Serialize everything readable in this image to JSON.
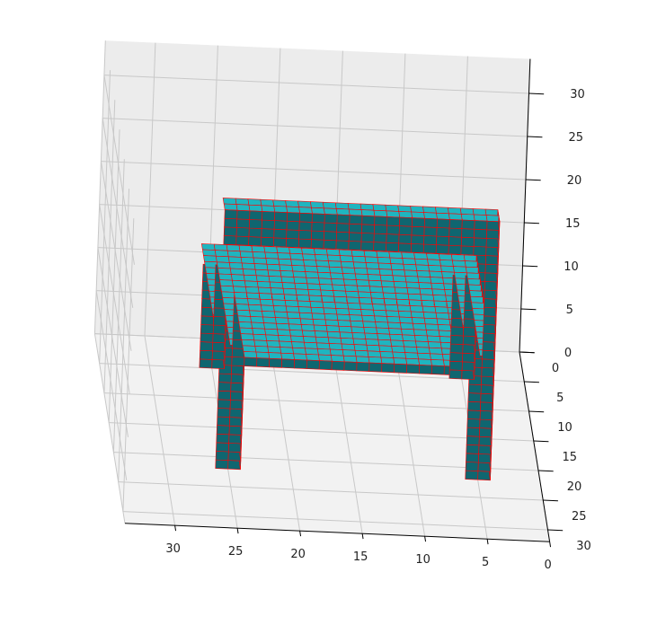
{
  "chart_data": {
    "type": "voxel",
    "title": "",
    "xlabel": "",
    "ylabel": "",
    "zlabel": "",
    "xlim": [
      0,
      32
    ],
    "ylim": [
      0,
      32
    ],
    "zlim": [
      0,
      32
    ],
    "grid": true,
    "xticks": [
      "30",
      "25",
      "20",
      "15",
      "10",
      "5",
      "0"
    ],
    "yticks": [
      "0",
      "5",
      "10",
      "15",
      "20",
      "25",
      "30"
    ],
    "zticks": [
      "0",
      "5",
      "10",
      "15",
      "20",
      "25",
      "30"
    ],
    "voxel_face_color": "#1fb5c0",
    "voxel_edge_color": "#ff0000",
    "voxel_shade_color": "#0f6670",
    "description_of_shape": "chair",
    "voxels": {
      "seat": {
        "x": [
          4,
          26
        ],
        "y": [
          3,
          22
        ],
        "z": [
          12,
          13
        ]
      },
      "front_left_leg": {
        "x": [
          4,
          6
        ],
        "y": [
          3,
          5
        ],
        "z": [
          0,
          12
        ]
      },
      "front_right_leg": {
        "x": [
          24,
          26
        ],
        "y": [
          3,
          5
        ],
        "z": [
          0,
          12
        ]
      },
      "back_left_leg": {
        "x": [
          4,
          6
        ],
        "y": [
          20,
          22
        ],
        "z": [
          0,
          12
        ]
      },
      "back_right_leg": {
        "x": [
          24,
          26
        ],
        "y": [
          20,
          22
        ],
        "z": [
          0,
          12
        ]
      },
      "back_left_post": {
        "x": [
          4,
          6
        ],
        "y": [
          20,
          22
        ],
        "z": [
          13,
          30
        ]
      },
      "back_right_post": {
        "x": [
          24,
          26
        ],
        "y": [
          20,
          22
        ],
        "z": [
          13,
          30
        ]
      },
      "back_rail_top": {
        "x": [
          4,
          26
        ],
        "y": [
          20,
          22
        ],
        "z": [
          26,
          30
        ]
      },
      "back_rail_mid": {
        "x": [
          4,
          26
        ],
        "y": [
          20,
          22
        ],
        "z": [
          20,
          23
        ]
      }
    }
  },
  "colors": {
    "pane_left": "#e6e6e6",
    "pane_right": "#ececec",
    "pane_floor": "#f2f2f2",
    "grid": "#c8c8c8",
    "axis": "#000000"
  }
}
